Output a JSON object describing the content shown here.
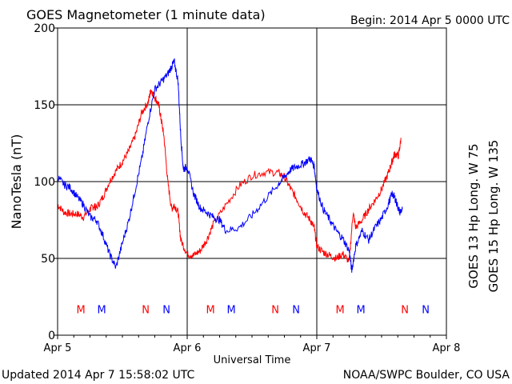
{
  "chart_data": {
    "type": "line",
    "title": "GOES Magnetometer (1 minute data)",
    "begin_label": "Begin:  2014 Apr 5 0000 UTC",
    "updated_label": "Updated 2014 Apr  7 15:58:02 UTC",
    "credit_label": "NOAA/SWPC Boulder, CO USA",
    "xlabel": "Universal Time",
    "ylabel": "NanoTesla (nT)",
    "x_ticks": [
      "Apr 5",
      "Apr 6",
      "Apr 7",
      "Apr 8"
    ],
    "xlim_days": [
      0,
      3
    ],
    "ylim": [
      0,
      200
    ],
    "y_ticks": [
      0,
      50,
      100,
      150,
      200
    ],
    "grid": true,
    "series": [
      {
        "name": "GOES 13 Hp  Long. W 75",
        "color": "#ff0000",
        "x": [
          0.0,
          0.05,
          0.1,
          0.15,
          0.2,
          0.25,
          0.28,
          0.3,
          0.35,
          0.4,
          0.45,
          0.5,
          0.55,
          0.6,
          0.65,
          0.7,
          0.72,
          0.75,
          0.78,
          0.8,
          0.82,
          0.85,
          0.88,
          0.9,
          0.93,
          0.95,
          1.0,
          1.05,
          1.1,
          1.15,
          1.2,
          1.3,
          1.4,
          1.5,
          1.6,
          1.7,
          1.75,
          1.8,
          1.85,
          1.9,
          1.95,
          1.98,
          2.0,
          2.05,
          2.1,
          2.15,
          2.2,
          2.25,
          2.28,
          2.3,
          2.35,
          2.4,
          2.45,
          2.5,
          2.55,
          2.58,
          2.6,
          2.63,
          2.65
        ],
        "y": [
          85,
          80,
          79,
          79,
          77,
          82,
          84,
          83,
          90,
          100,
          107,
          113,
          120,
          130,
          145,
          152,
          160,
          155,
          150,
          140,
          130,
          100,
          82,
          85,
          80,
          62,
          53,
          52,
          55,
          62,
          72,
          85,
          97,
          104,
          106,
          106,
          103,
          95,
          88,
          80,
          75,
          70,
          58,
          54,
          52,
          50,
          53,
          48,
          80,
          70,
          75,
          82,
          88,
          95,
          105,
          113,
          118,
          117,
          128
        ]
      },
      {
        "name": "GOES 15 Hp  Long. W 135",
        "color": "#0000ff",
        "x": [
          0.0,
          0.05,
          0.1,
          0.15,
          0.2,
          0.25,
          0.3,
          0.35,
          0.4,
          0.45,
          0.5,
          0.55,
          0.6,
          0.65,
          0.7,
          0.75,
          0.8,
          0.85,
          0.88,
          0.9,
          0.93,
          0.95,
          0.97,
          1.0,
          1.05,
          1.1,
          1.15,
          1.2,
          1.25,
          1.3,
          1.4,
          1.5,
          1.6,
          1.7,
          1.75,
          1.8,
          1.85,
          1.9,
          1.95,
          1.98,
          2.0,
          2.05,
          2.1,
          2.15,
          2.2,
          2.25,
          2.27,
          2.3,
          2.35,
          2.4,
          2.45,
          2.5,
          2.55,
          2.58,
          2.6,
          2.62,
          2.64,
          2.66
        ],
        "y": [
          103,
          98,
          96,
          90,
          85,
          77,
          75,
          65,
          53,
          44,
          60,
          75,
          95,
          115,
          140,
          160,
          165,
          170,
          175,
          178,
          165,
          130,
          108,
          110,
          92,
          83,
          80,
          77,
          75,
          68,
          70,
          78,
          88,
          98,
          103,
          108,
          110,
          112,
          115,
          110,
          95,
          82,
          75,
          68,
          63,
          55,
          42,
          58,
          68,
          62,
          70,
          76,
          85,
          92,
          90,
          85,
          80,
          82
        ]
      }
    ],
    "markers": {
      "series1_color": "#ff0000",
      "series2_color": "#0000ff",
      "y_value": 17,
      "items": [
        {
          "x": 0.18,
          "label": "M",
          "series": 1
        },
        {
          "x": 0.34,
          "label": "M",
          "series": 2
        },
        {
          "x": 0.68,
          "label": "N",
          "series": 1
        },
        {
          "x": 0.84,
          "label": "N",
          "series": 2
        },
        {
          "x": 1.18,
          "label": "M",
          "series": 1
        },
        {
          "x": 1.34,
          "label": "M",
          "series": 2
        },
        {
          "x": 1.68,
          "label": "N",
          "series": 1
        },
        {
          "x": 1.84,
          "label": "N",
          "series": 2
        },
        {
          "x": 2.18,
          "label": "M",
          "series": 1
        },
        {
          "x": 2.34,
          "label": "M",
          "series": 2
        },
        {
          "x": 2.68,
          "label": "N",
          "series": 1
        },
        {
          "x": 2.84,
          "label": "N",
          "series": 2
        }
      ]
    }
  }
}
